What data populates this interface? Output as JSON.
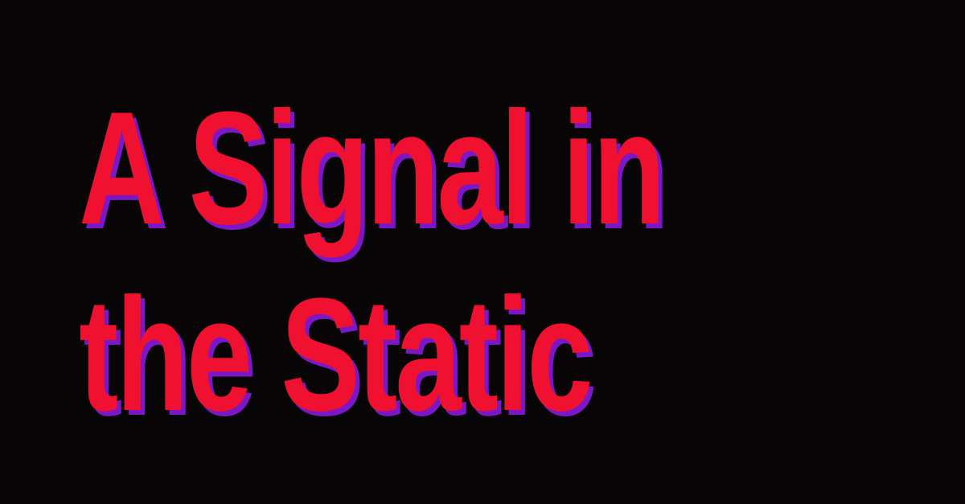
{
  "headline": {
    "line1": "A Signal in",
    "line2": "the Static"
  },
  "colors": {
    "background": "#070505",
    "text": "#f0102f",
    "shadow": "#7a18c8"
  }
}
